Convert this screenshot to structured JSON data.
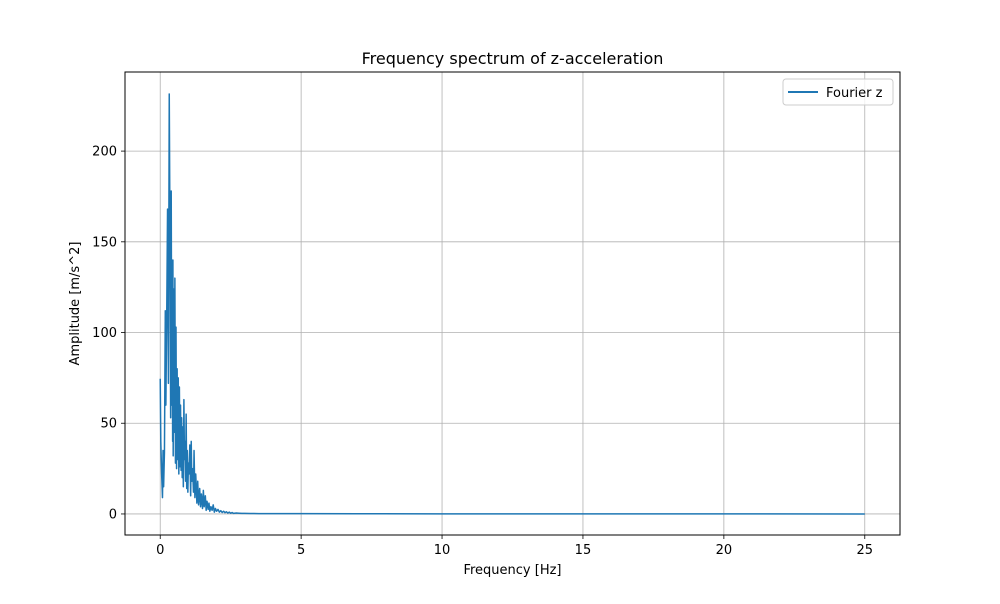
{
  "chart_data": {
    "type": "line",
    "title": "Frequency spectrum of z-acceleration",
    "xlabel": "Frequency [Hz]",
    "ylabel": "Amplitude [m/s^2]",
    "xlim": [
      -1.25,
      26.25
    ],
    "ylim": [
      -11.6,
      243.6
    ],
    "xticks": [
      0,
      5,
      10,
      15,
      20,
      25
    ],
    "yticks": [
      0,
      50,
      100,
      150,
      200
    ],
    "grid": true,
    "legend_position": "top-right",
    "series": [
      {
        "name": "Fourier z",
        "color": "#1f77b4",
        "x": [
          0.0,
          0.02,
          0.05,
          0.08,
          0.1,
          0.12,
          0.15,
          0.18,
          0.2,
          0.23,
          0.26,
          0.29,
          0.32,
          0.35,
          0.37,
          0.39,
          0.41,
          0.43,
          0.44,
          0.45,
          0.46,
          0.48,
          0.5,
          0.52,
          0.54,
          0.56,
          0.58,
          0.6,
          0.62,
          0.64,
          0.66,
          0.68,
          0.7,
          0.72,
          0.74,
          0.76,
          0.78,
          0.8,
          0.82,
          0.84,
          0.86,
          0.88,
          0.9,
          0.92,
          0.94,
          0.96,
          0.98,
          1.0,
          1.02,
          1.05,
          1.08,
          1.1,
          1.12,
          1.15,
          1.18,
          1.2,
          1.23,
          1.26,
          1.3,
          1.33,
          1.36,
          1.4,
          1.43,
          1.46,
          1.5,
          1.53,
          1.56,
          1.6,
          1.63,
          1.66,
          1.7,
          1.73,
          1.76,
          1.8,
          1.84,
          1.88,
          1.92,
          1.96,
          2.0,
          2.05,
          2.1,
          2.15,
          2.2,
          2.25,
          2.3,
          2.35,
          2.4,
          2.45,
          2.5,
          2.55,
          2.6,
          2.7,
          2.8,
          2.9,
          3.0,
          3.2,
          3.5,
          4.0,
          5.0,
          7.0,
          10.0,
          15.0,
          20.0,
          25.0
        ],
        "y": [
          74.5,
          40.0,
          22.0,
          9.0,
          35.0,
          15.0,
          34.0,
          112.0,
          60.0,
          108.0,
          168.0,
          72.0,
          231.5,
          140.0,
          53.0,
          178.0,
          60.0,
          103.0,
          40.0,
          140.0,
          32.0,
          124.0,
          45.0,
          130.0,
          28.0,
          103.0,
          25.0,
          80.0,
          30.0,
          75.0,
          22.0,
          70.0,
          26.0,
          60.0,
          24.0,
          53.0,
          20.0,
          48.0,
          15.0,
          63.0,
          30.0,
          40.0,
          18.0,
          55.0,
          14.0,
          35.0,
          12.0,
          28.0,
          22.0,
          38.0,
          10.0,
          40.0,
          18.0,
          25.0,
          12.0,
          35.0,
          9.0,
          22.0,
          6.0,
          18.0,
          5.0,
          14.0,
          4.0,
          11.0,
          3.0,
          13.0,
          4.0,
          10.0,
          2.0,
          7.0,
          2.5,
          6.0,
          1.5,
          4.0,
          2.0,
          5.0,
          1.0,
          3.0,
          1.5,
          2.5,
          1.0,
          1.8,
          0.8,
          1.5,
          0.7,
          1.2,
          0.5,
          1.0,
          0.4,
          0.8,
          0.3,
          0.5,
          0.4,
          0.3,
          0.3,
          0.25,
          0.2,
          0.2,
          0.15,
          0.1,
          0.05,
          0.03,
          0.02,
          0.01
        ]
      }
    ]
  }
}
